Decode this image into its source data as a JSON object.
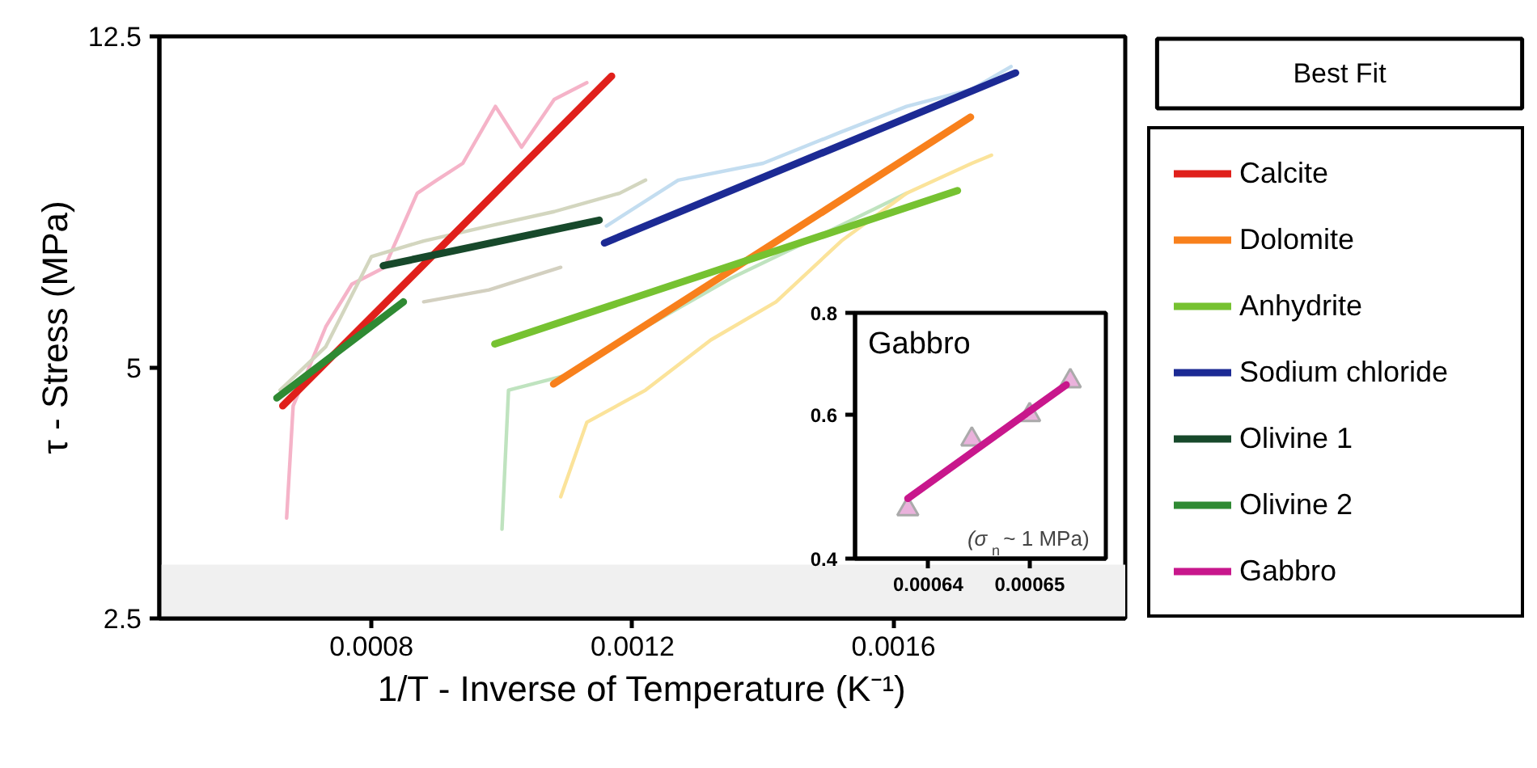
{
  "chart_data": [
    {
      "type": "line",
      "xlabel": "1/T - Inverse of Temperature (K⁻¹)",
      "ylabel": "τ - Stress (MPa)",
      "log": "y",
      "xlim": [
        0.000475,
        0.001955
      ],
      "xticks": [
        0.0008,
        0.0012,
        0.0016
      ],
      "ylim": [
        2.5,
        12.5
      ],
      "yticks": [
        2.5,
        5,
        12.5
      ],
      "grid": false,
      "legend": "right",
      "legend_title": "Best Fit",
      "bands": [
        {
          "axis": "y",
          "from": 2.5,
          "to": 2.9,
          "color": "#f0f0f0"
        }
      ],
      "series": [
        {
          "color": "#f5b3c8",
          "x": [
            0.00067,
            0.00068,
            0.00073,
            0.00077,
            0.00082,
            0.00087,
            0.0009,
            0.00094,
            0.00099,
            0.00103,
            0.00108,
            0.00113
          ],
          "values": [
            3.3,
            4.5,
            5.6,
            6.3,
            6.6,
            8.1,
            8.4,
            8.8,
            10.3,
            9.2,
            10.5,
            11.0
          ]
        },
        {
          "color": "#d3d6bf",
          "x": [
            0.00066,
            0.00073,
            0.0008,
            0.00088,
            0.00098,
            0.00108,
            0.00118,
            0.00122
          ],
          "values": [
            4.7,
            5.3,
            6.8,
            7.1,
            7.4,
            7.7,
            8.1,
            8.4
          ]
        },
        {
          "color": "#d3d0c0",
          "x": [
            0.00088,
            0.00098,
            0.00109
          ],
          "values": [
            6.0,
            6.2,
            6.6
          ]
        },
        {
          "color": "#bfe3bf",
          "x": [
            0.001,
            0.00101,
            0.0011,
            0.00122,
            0.00135,
            0.00147,
            0.00162
          ],
          "values": [
            3.2,
            4.7,
            4.9,
            5.6,
            6.4,
            7.1,
            8.1
          ]
        },
        {
          "color": "#fbe39a",
          "x": [
            0.00109,
            0.00113,
            0.00122,
            0.00132,
            0.00142,
            0.00152,
            0.00162,
            0.00172,
            0.00175
          ],
          "values": [
            3.5,
            4.3,
            4.7,
            5.4,
            6.0,
            7.1,
            8.1,
            8.8,
            9.0
          ]
        },
        {
          "color": "#c3ddf0",
          "x": [
            0.00116,
            0.00127,
            0.0014,
            0.00152,
            0.00162,
            0.00172,
            0.00178
          ],
          "values": [
            7.4,
            8.4,
            8.8,
            9.6,
            10.3,
            10.8,
            11.5
          ]
        },
        {
          "name": "Calcite",
          "color": "#e0201b",
          "x": [
            0.000664,
            0.001168
          ],
          "values": [
            4.5,
            11.2
          ]
        },
        {
          "name": "Dolomite",
          "color": "#f8801c",
          "x": [
            0.001079,
            0.001718
          ],
          "values": [
            4.78,
            10.0
          ]
        },
        {
          "name": "Anhydrite",
          "color": "#76c231",
          "x": [
            0.000989,
            0.001698
          ],
          "values": [
            5.34,
            8.16
          ]
        },
        {
          "name": "Sodium chloride",
          "color": "#1c2a94",
          "x": [
            0.001157,
            0.001787
          ],
          "values": [
            7.06,
            11.3
          ]
        },
        {
          "name": "Olivine 1",
          "color": "#17492b",
          "x": [
            0.000818,
            0.001149
          ],
          "values": [
            6.63,
            7.52
          ]
        },
        {
          "name": "Olivine 2",
          "color": "#2f8a33",
          "x": [
            0.000655,
            0.000849
          ],
          "values": [
            4.6,
            6.0
          ]
        }
      ]
    },
    {
      "type": "scatter",
      "title": "Gabbro",
      "log": "y",
      "xlim": [
        0.0006328,
        0.0006575
      ],
      "xticks": [
        0.00064,
        0.00065
      ],
      "ylim": [
        0.4,
        0.8
      ],
      "yticks": [
        0.4,
        0.6,
        0.8
      ],
      "grid": false,
      "legend": "right",
      "annotations": [
        "(σ$_{n}$~ 1 MPa)"
      ],
      "series": [
        {
          "type": "scatter",
          "marker": "triangle",
          "color": "#eab2dc",
          "x": [
            0.000638,
            0.0006443,
            0.00065,
            0.000654
          ],
          "values": [
            0.46,
            0.56,
            0.6,
            0.66
          ]
        },
        {
          "type": "line",
          "name": "Gabbro",
          "color": "#c8178c",
          "x": [
            0.000638,
            0.0006536
          ],
          "values": [
            0.474,
            0.653
          ]
        }
      ]
    }
  ]
}
